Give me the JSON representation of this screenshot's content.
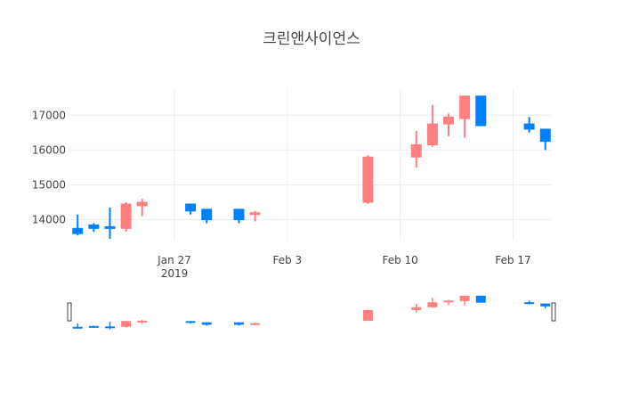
{
  "chart_data": {
    "type": "candlestick",
    "title": "크린앤사이언스",
    "xlabel": "",
    "ylabel": "",
    "ylim": [
      13400,
      17750
    ],
    "yticks": [
      14000,
      15000,
      16000,
      17000
    ],
    "xticks": [
      {
        "date": "2019-01-27",
        "label": "Jan 27",
        "sublabel": "2019"
      },
      {
        "date": "2019-02-03",
        "label": "Feb 3",
        "sublabel": ""
      },
      {
        "date": "2019-02-10",
        "label": "Feb 10",
        "sublabel": ""
      },
      {
        "date": "2019-02-17",
        "label": "Feb 17",
        "sublabel": ""
      }
    ],
    "xrange": [
      "2019-01-21",
      "2019-02-19"
    ],
    "grid": true,
    "legend": "none",
    "rangeslider": true,
    "increasing_color": "#ff8080",
    "decreasing_color": "#0080ff",
    "candles": [
      {
        "date": "2019-01-21",
        "open": 13750,
        "high": 14150,
        "low": 13550,
        "close": 13600
      },
      {
        "date": "2019-01-22",
        "open": 13850,
        "high": 13900,
        "low": 13650,
        "close": 13750
      },
      {
        "date": "2019-01-23",
        "open": 13800,
        "high": 14350,
        "low": 13450,
        "close": 13750
      },
      {
        "date": "2019-01-24",
        "open": 13750,
        "high": 14500,
        "low": 13650,
        "close": 14450
      },
      {
        "date": "2019-01-25",
        "open": 14400,
        "high": 14600,
        "low": 14100,
        "close": 14500
      },
      {
        "date": "2019-01-28",
        "open": 14450,
        "high": 14450,
        "low": 14150,
        "close": 14250
      },
      {
        "date": "2019-01-29",
        "open": 14300,
        "high": 14300,
        "low": 13900,
        "close": 14000
      },
      {
        "date": "2019-01-31",
        "open": 14300,
        "high": 14300,
        "low": 13900,
        "close": 14000
      },
      {
        "date": "2019-02-01",
        "open": 14150,
        "high": 14250,
        "low": 13950,
        "close": 14200
      },
      {
        "date": "2019-02-08",
        "open": 14500,
        "high": 15850,
        "low": 14450,
        "close": 15800
      },
      {
        "date": "2019-02-11",
        "open": 15800,
        "high": 16550,
        "low": 15500,
        "close": 16150
      },
      {
        "date": "2019-02-12",
        "open": 16150,
        "high": 17300,
        "low": 16100,
        "close": 16750
      },
      {
        "date": "2019-02-13",
        "open": 16750,
        "high": 17050,
        "low": 16400,
        "close": 16950
      },
      {
        "date": "2019-02-14",
        "open": 16900,
        "high": 17550,
        "low": 16350,
        "close": 17550
      },
      {
        "date": "2019-02-15",
        "open": 17550,
        "high": 17550,
        "low": 16700,
        "close": 16700
      },
      {
        "date": "2019-02-18",
        "open": 16750,
        "high": 16950,
        "low": 16500,
        "close": 16600
      },
      {
        "date": "2019-02-19",
        "open": 16600,
        "high": 16600,
        "low": 16000,
        "close": 16250
      }
    ]
  }
}
